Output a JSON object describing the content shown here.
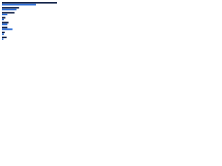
{
  "chart_data": {
    "type": "bar",
    "orientation": "horizontal",
    "categories": [
      null,
      null,
      null,
      null,
      null,
      null,
      null,
      null
    ],
    "series": [
      {
        "color": "#1a2a4f",
        "values": [
          84,
          26,
          19,
          5,
          10,
          8,
          4,
          7
        ]
      },
      {
        "color": "#2f6fd6",
        "values": [
          52,
          22,
          8,
          3,
          8,
          16,
          3,
          2
        ]
      }
    ],
    "xlim": [
      0,
      100
    ]
  }
}
